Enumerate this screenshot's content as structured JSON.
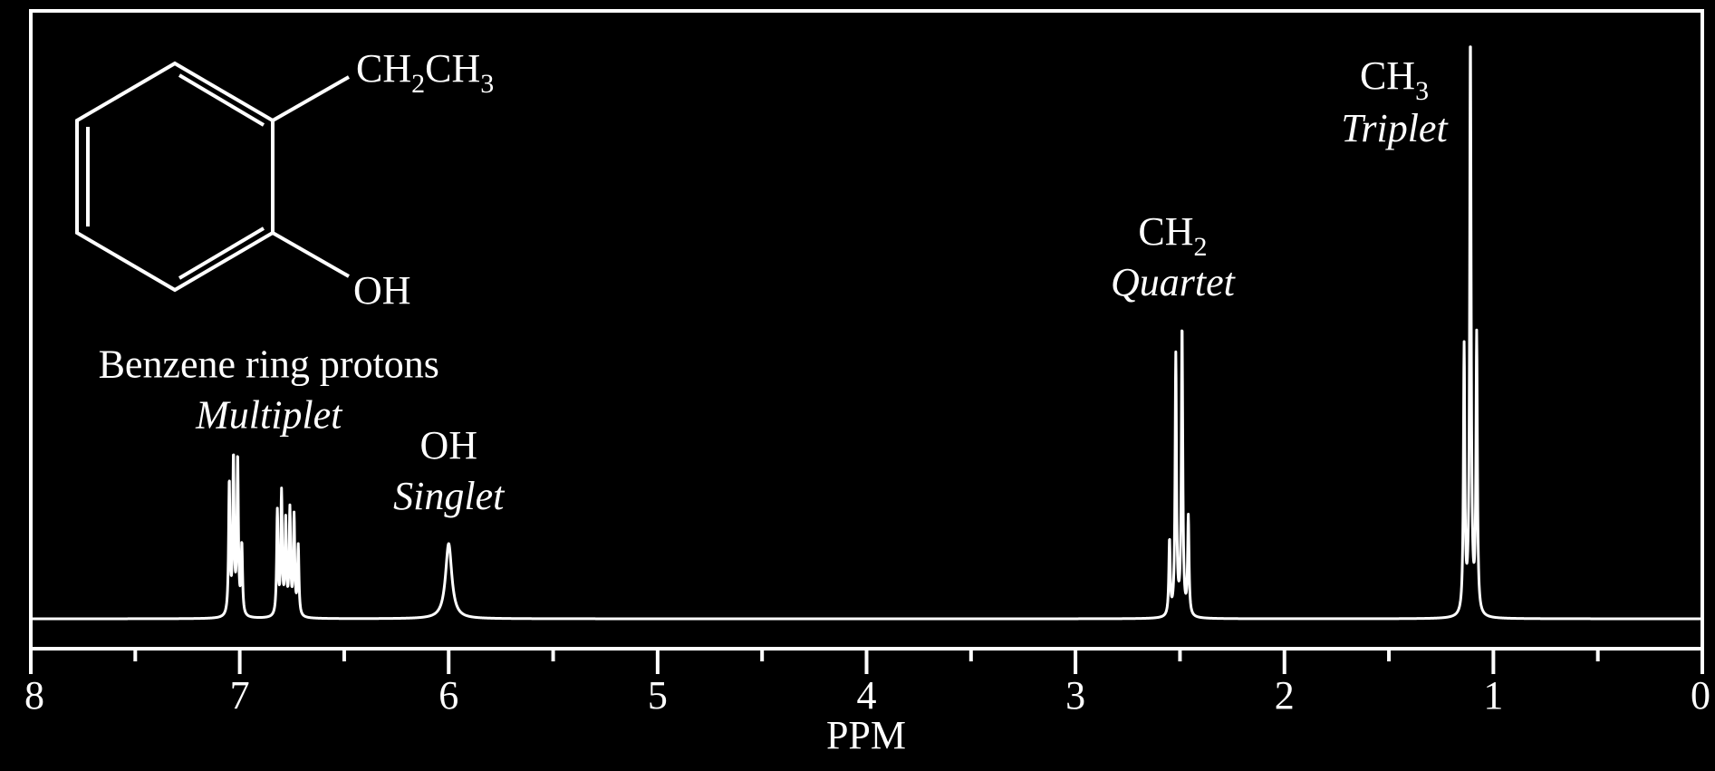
{
  "colors": {
    "background": "#000000",
    "foreground": "#ffffff"
  },
  "chart_data": {
    "type": "line",
    "xlabel": "PPM",
    "xlim": [
      8,
      0
    ],
    "x_reversed": true,
    "grid": false,
    "x_ticks_major": [
      8,
      7,
      6,
      5,
      4,
      3,
      2,
      1,
      0
    ],
    "x_ticks_minor": [
      7.5,
      6.5,
      5.5,
      4.5,
      3.5,
      2.5,
      1.5,
      0.5
    ],
    "tick_labels": [
      "8",
      "7",
      "6",
      "5",
      "4",
      "3",
      "2",
      "1",
      "0"
    ],
    "peaks": [
      {
        "x": 7.05,
        "y": 0.23
      },
      {
        "x": 7.03,
        "y": 0.27
      },
      {
        "x": 7.01,
        "y": 0.27
      },
      {
        "x": 6.99,
        "y": 0.12
      },
      {
        "x": 6.82,
        "y": 0.18
      },
      {
        "x": 6.8,
        "y": 0.21
      },
      {
        "x": 6.78,
        "y": 0.16
      },
      {
        "x": 6.76,
        "y": 0.18
      },
      {
        "x": 6.74,
        "y": 0.17
      },
      {
        "x": 6.72,
        "y": 0.12
      },
      {
        "x": 6.0,
        "y": 0.13,
        "broad": true
      },
      {
        "x": 2.55,
        "y": 0.13
      },
      {
        "x": 2.52,
        "y": 0.45
      },
      {
        "x": 2.49,
        "y": 0.5
      },
      {
        "x": 2.46,
        "y": 0.17
      },
      {
        "x": 1.14,
        "y": 0.46
      },
      {
        "x": 1.11,
        "y": 1.0
      },
      {
        "x": 1.08,
        "y": 0.48
      }
    ],
    "annotations": [
      {
        "x": 6.8,
        "line1": "Benzene ring protons",
        "line2": "Multiplet"
      },
      {
        "x": 6.0,
        "line1": "OH",
        "line2": "Singlet"
      },
      {
        "x": 2.5,
        "line1": "CH",
        "line1_sub": "2",
        "line2": "Quartet"
      },
      {
        "x": 1.11,
        "line1": "CH",
        "line1_sub": "3",
        "line2": "Triplet"
      }
    ],
    "structure": {
      "substituent_1": {
        "main": "CH",
        "sub": "2",
        "tail": "CH",
        "tail_sub": "3"
      },
      "substituent_2": "OH"
    }
  }
}
